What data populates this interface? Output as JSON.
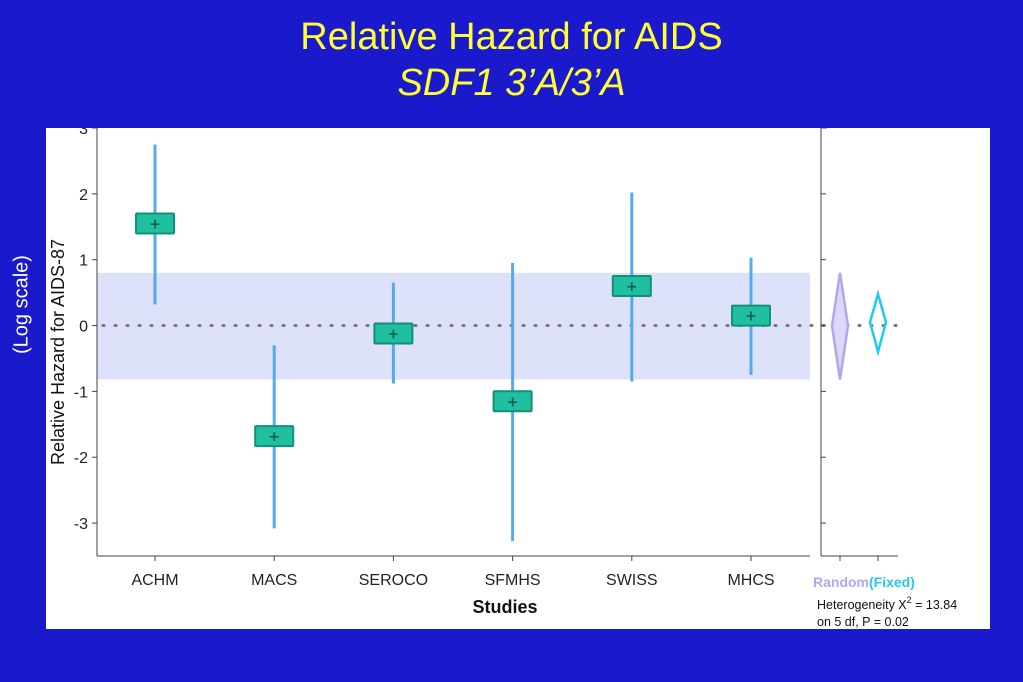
{
  "slide": {
    "title": "Relative Hazard for AIDS",
    "subtitle": "SDF1 3’A/3’A",
    "side_label": "(Log scale)",
    "background": "#1a1acc",
    "title_color": "#ffff33"
  },
  "chart_data": {
    "type": "forest",
    "ylabel": "Relative Hazard for AIDS-87",
    "xlabel": "Studies",
    "ylim": [
      -3.5,
      3
    ],
    "yticks": [
      3,
      2,
      1,
      0,
      -1,
      -2,
      -3
    ],
    "y_scale": "log",
    "reference_line": 0,
    "band": [
      -0.82,
      0.8
    ],
    "band_color": "#dde1fa",
    "box_color": "#1fbf9f",
    "ci_color": "#55aaee",
    "studies": [
      {
        "name": "ACHM",
        "estimate": 1.55,
        "ci": [
          0.32,
          2.75
        ]
      },
      {
        "name": "MACS",
        "estimate": -1.68,
        "ci": [
          -3.08,
          -0.3
        ]
      },
      {
        "name": "SEROCO",
        "estimate": -0.12,
        "ci": [
          -0.88,
          0.65
        ]
      },
      {
        "name": "SFMHS",
        "estimate": -1.15,
        "ci": [
          -3.27,
          0.95
        ]
      },
      {
        "name": "SWISS",
        "estimate": 0.6,
        "ci": [
          -0.85,
          2.02
        ]
      },
      {
        "name": "MHCS",
        "estimate": 0.15,
        "ci": [
          -0.75,
          1.03
        ]
      }
    ],
    "summary": [
      {
        "name": "Random",
        "estimate": 0.0,
        "ci": [
          -0.82,
          0.8
        ],
        "color": "#b0a8ee"
      },
      {
        "name": "(Fixed)",
        "estimate": 0.05,
        "ci": [
          -0.4,
          0.48
        ],
        "color": "#22c8ee"
      }
    ],
    "heterogeneity": {
      "line1_prefix": "Heterogeneity X",
      "line1_sup": "2",
      "line1_suffix": " = 13.84",
      "line2": "on 5 df, P = 0.02"
    }
  }
}
